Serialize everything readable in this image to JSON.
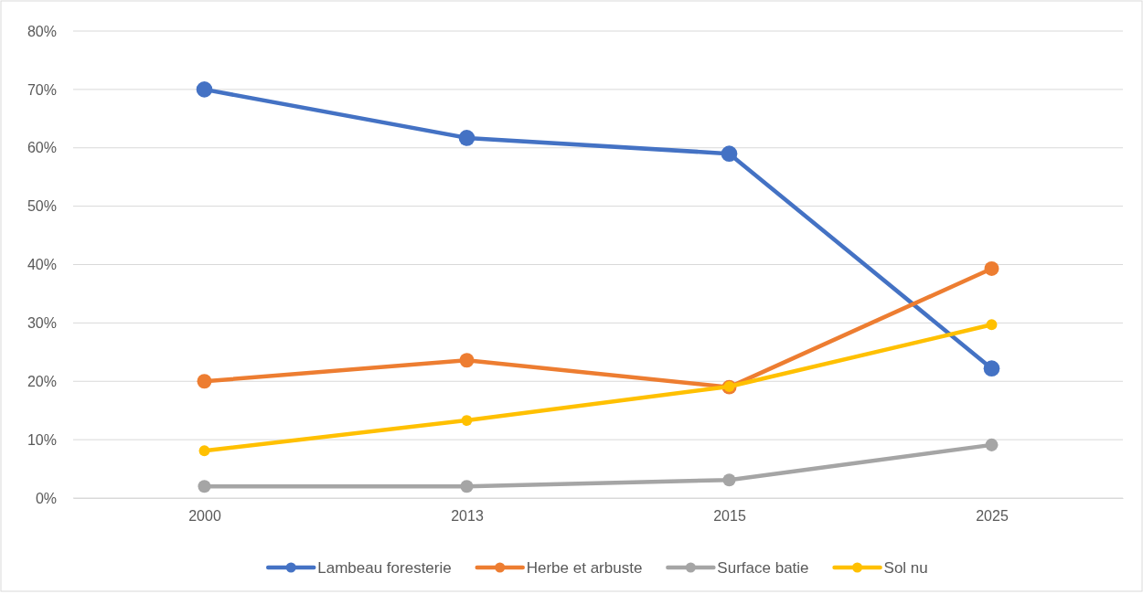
{
  "chart_data": {
    "type": "line",
    "categories": [
      "2000",
      "2013",
      "2015",
      "2025"
    ],
    "series": [
      {
        "name": "Lambeau foresterie",
        "color": "#4472c4",
        "values": [
          70,
          61.7,
          59,
          22.2
        ]
      },
      {
        "name": "Herbe et arbuste",
        "color": "#ed7d31",
        "values": [
          20,
          23.6,
          19,
          39.3
        ]
      },
      {
        "name": "Surface batie",
        "color": "#a5a5a5",
        "values": [
          2,
          2,
          3.1,
          9.1
        ]
      },
      {
        "name": "Sol nu",
        "color": "#ffc000",
        "values": [
          8.1,
          13.3,
          19.1,
          29.7
        ]
      }
    ],
    "ylim": [
      0,
      80
    ],
    "yticks": [
      {
        "value": 0,
        "label": "0%"
      },
      {
        "value": 10,
        "label": "10%"
      },
      {
        "value": 20,
        "label": "20%"
      },
      {
        "value": 30,
        "label": "30%"
      },
      {
        "value": 40,
        "label": "40%"
      },
      {
        "value": 50,
        "label": "50%"
      },
      {
        "value": 60,
        "label": "60%"
      },
      {
        "value": 70,
        "label": "70%"
      },
      {
        "value": 80,
        "label": "80%"
      }
    ],
    "grid": "y",
    "legend": "bottom",
    "marker": "circle",
    "line_style": "solid"
  }
}
